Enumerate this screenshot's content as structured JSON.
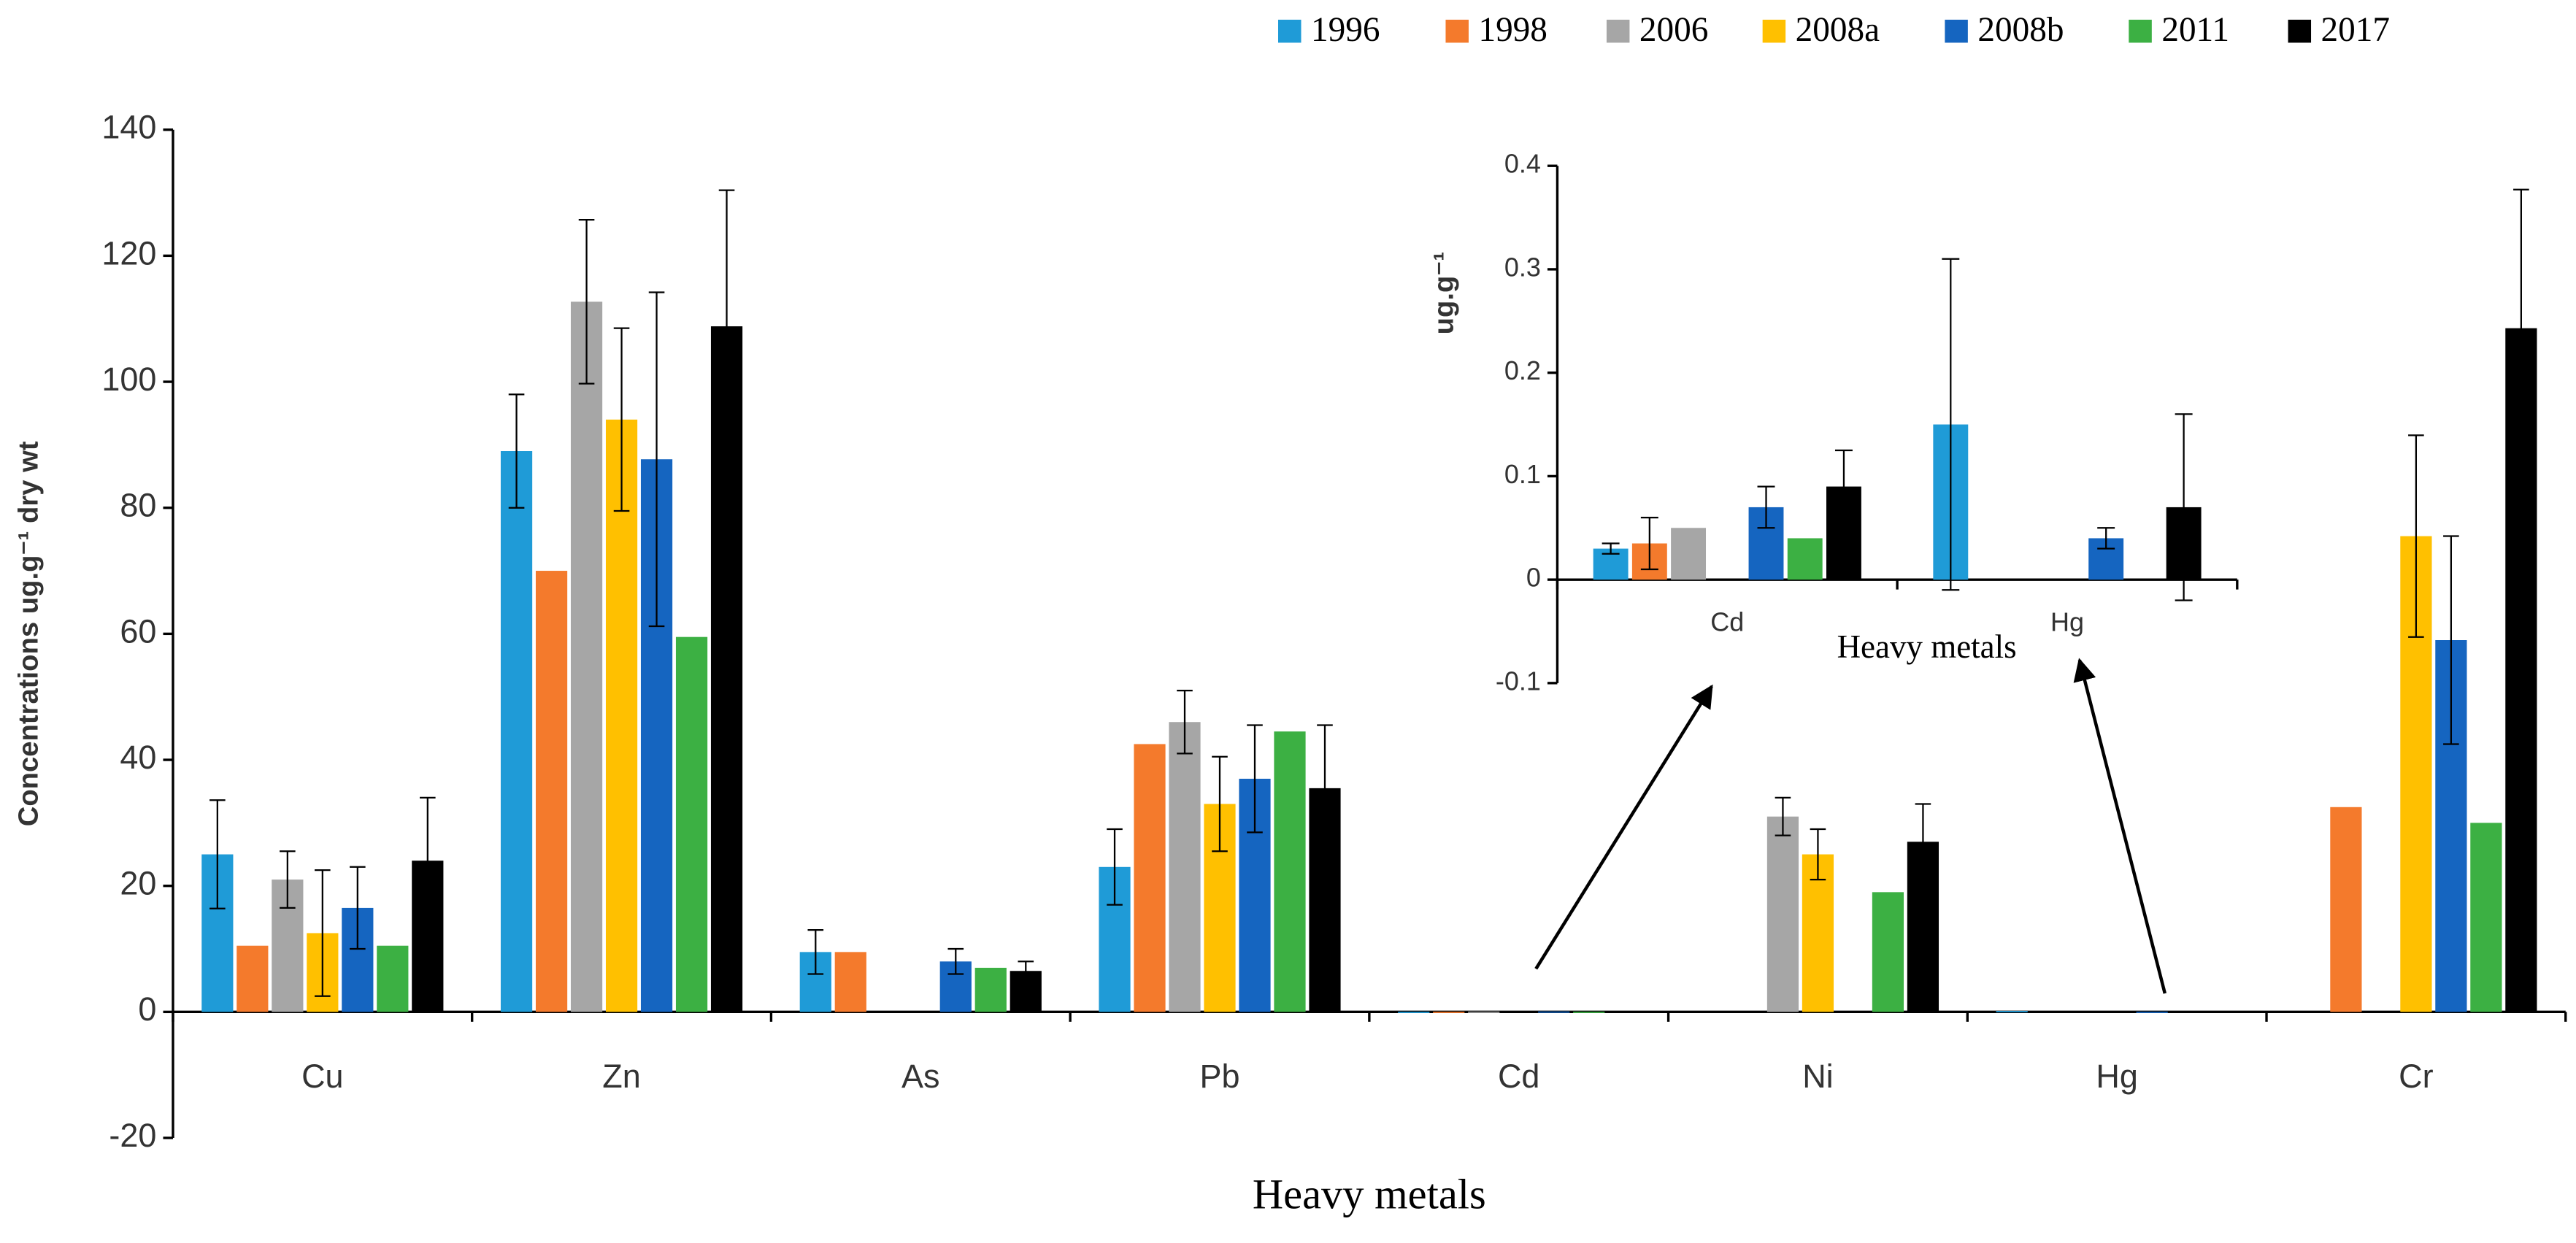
{
  "chart_data": [
    {
      "type": "bar",
      "x_label": "Heavy metals",
      "y_label": "Concentrations ug.g⁻¹ dry wt",
      "categories": [
        "Cu",
        "Zn",
        "As",
        "Pb",
        "Cd",
        "Ni",
        "Hg",
        "Cr"
      ],
      "ylim": [
        -20,
        140
      ],
      "yticks": [
        -20,
        0,
        20,
        40,
        60,
        80,
        100,
        120,
        140
      ],
      "grid": false,
      "legend": "top",
      "series": [
        {
          "name": "1996",
          "color": "#1f9bd7",
          "values": [
            25,
            89,
            9.5,
            23,
            0.03,
            null,
            0.15,
            null
          ],
          "errors": [
            8.6,
            9,
            3.5,
            6,
            null,
            null,
            null,
            null
          ]
        },
        {
          "name": "1998",
          "color": "#f47a2c",
          "values": [
            10.5,
            70,
            9.5,
            42.5,
            0.035,
            null,
            null,
            32.5
          ],
          "errors": [
            null,
            null,
            null,
            null,
            null,
            null,
            null,
            null
          ]
        },
        {
          "name": "2006",
          "color": "#a6a6a6",
          "values": [
            21,
            112.7,
            null,
            46,
            0.05,
            31,
            null,
            null
          ],
          "errors": [
            4.5,
            13,
            null,
            5,
            null,
            3,
            null,
            null
          ]
        },
        {
          "name": "2008a",
          "color": "#ffc000",
          "values": [
            12.5,
            94,
            null,
            33,
            null,
            25,
            null,
            75.5
          ],
          "errors": [
            10,
            14.5,
            null,
            7.5,
            null,
            4,
            null,
            16
          ]
        },
        {
          "name": "2008b",
          "color": "#1565c0",
          "values": [
            16.5,
            87.7,
            8,
            37,
            0.07,
            null,
            0.04,
            59
          ],
          "errors": [
            6.5,
            26.5,
            2,
            8.5,
            null,
            null,
            null,
            16.5
          ]
        },
        {
          "name": "2011",
          "color": "#3cb043",
          "values": [
            10.5,
            59.5,
            7,
            44.5,
            0.04,
            19,
            null,
            30
          ],
          "errors": [
            null,
            null,
            null,
            null,
            null,
            null,
            null,
            null
          ]
        },
        {
          "name": "2017",
          "color": "#000000",
          "values": [
            24,
            108.8,
            6.5,
            35.5,
            0.09,
            27,
            0.07,
            108.5
          ],
          "errors": [
            10,
            21.6,
            1.5,
            10,
            null,
            6,
            null,
            22
          ]
        }
      ]
    },
    {
      "type": "bar",
      "x_label": "Heavy metals",
      "y_label": "ug.g⁻¹",
      "categories": [
        "Cd",
        "Hg"
      ],
      "ylim": [
        -0.1,
        0.4
      ],
      "yticks": [
        -0.1,
        0,
        0.1,
        0.2,
        0.3,
        0.4
      ],
      "grid": false,
      "series": [
        {
          "name": "1996",
          "color": "#1f9bd7",
          "values": [
            0.03,
            0.15
          ],
          "errors": [
            0.005,
            0.16
          ]
        },
        {
          "name": "1998",
          "color": "#f47a2c",
          "values": [
            0.035,
            null
          ],
          "errors": [
            0.025,
            null
          ]
        },
        {
          "name": "2006",
          "color": "#a6a6a6",
          "values": [
            0.05,
            null
          ],
          "errors": [
            null,
            null
          ]
        },
        {
          "name": "2008a",
          "color": "#ffc000",
          "values": [
            null,
            null
          ],
          "errors": [
            null,
            null
          ]
        },
        {
          "name": "2008b",
          "color": "#1565c0",
          "values": [
            0.07,
            0.04
          ],
          "errors": [
            0.02,
            0.01
          ]
        },
        {
          "name": "2011",
          "color": "#3cb043",
          "values": [
            0.04,
            null
          ],
          "errors": [
            null,
            null
          ]
        },
        {
          "name": "2017",
          "color": "#000000",
          "values": [
            0.09,
            0.07
          ],
          "errors": [
            0.035,
            0.09
          ]
        }
      ]
    }
  ]
}
